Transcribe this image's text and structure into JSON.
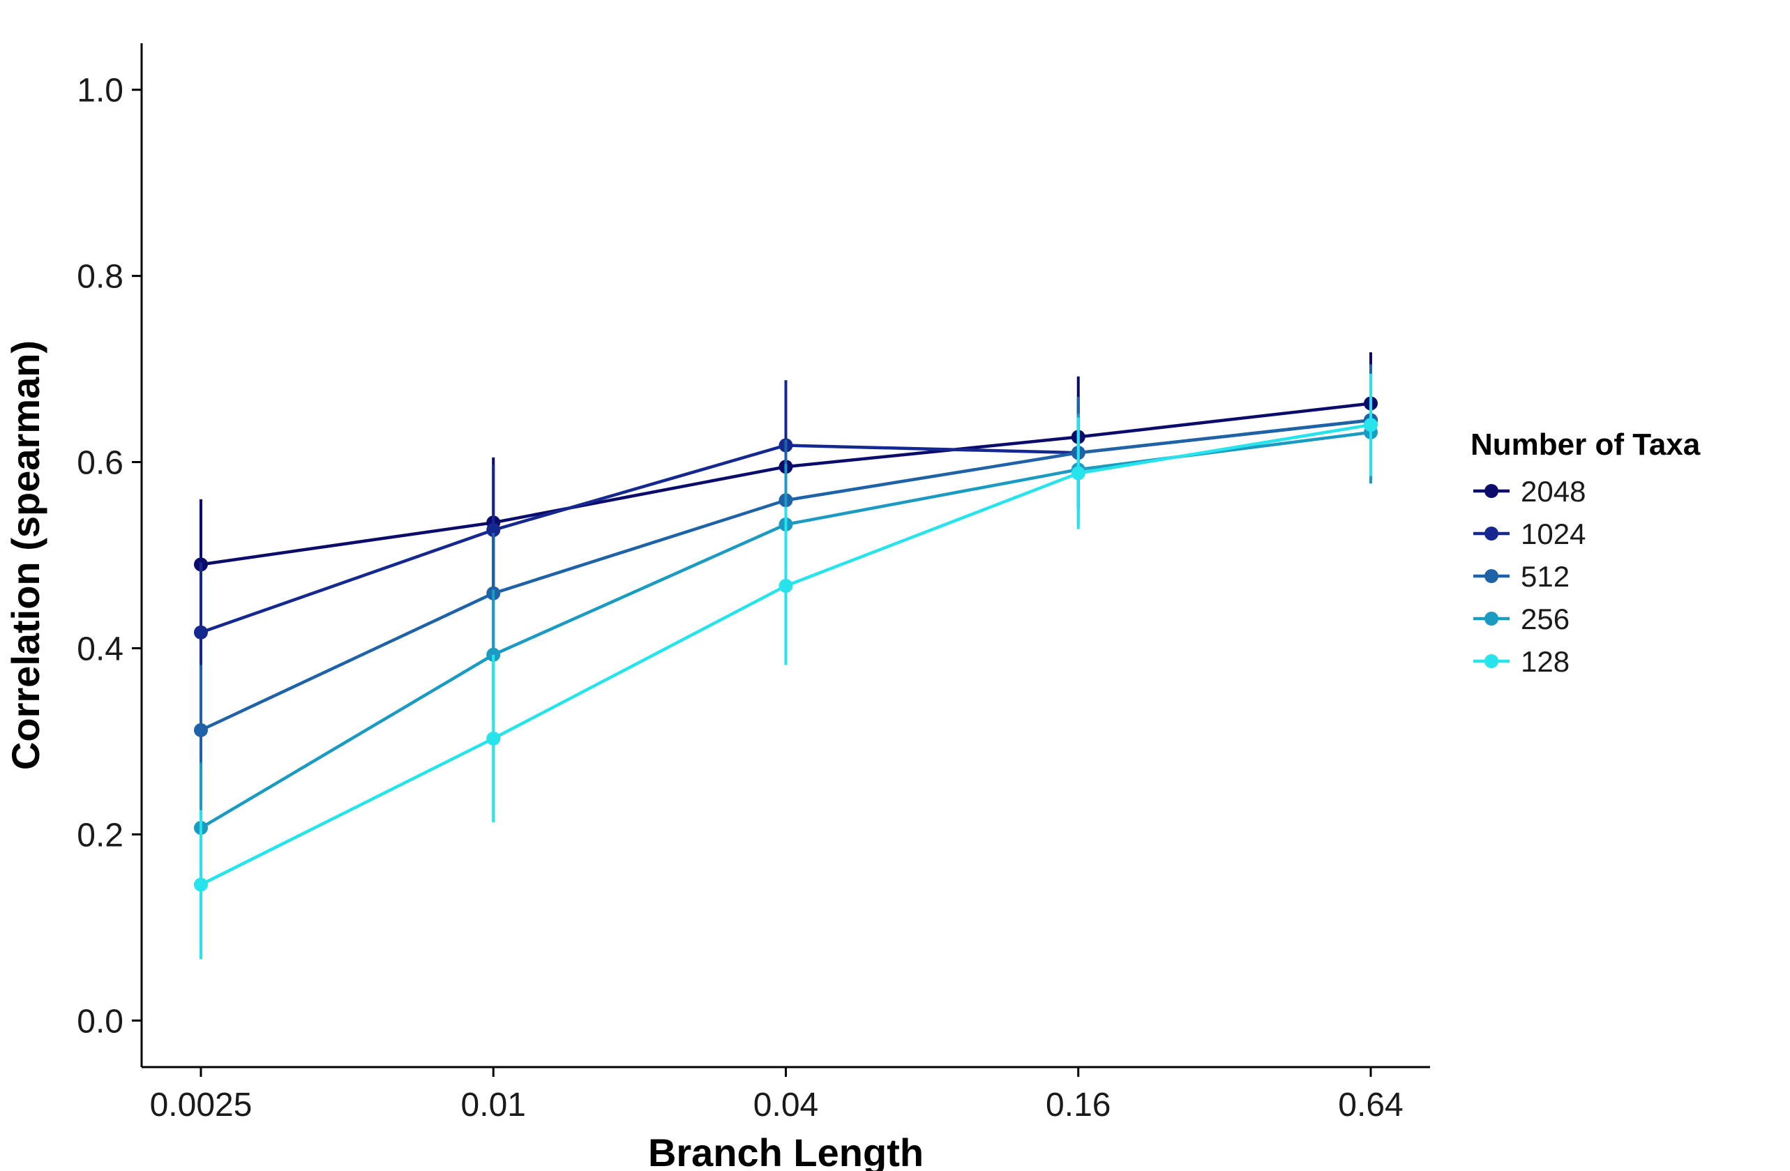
{
  "chart_data": {
    "type": "line",
    "xlabel": "Branch Length",
    "ylabel": "Correlation (spearman)",
    "categories": [
      "0.0025",
      "0.01",
      "0.04",
      "0.16",
      "0.64"
    ],
    "x_scale": "log",
    "ylim": [
      -0.05,
      1.05
    ],
    "yticks": [
      0.0,
      0.2,
      0.4,
      0.6,
      0.8,
      1.0
    ],
    "ytick_labels": [
      "0.0",
      "0.2",
      "0.4",
      "0.6",
      "0.8",
      "1.0"
    ],
    "grid": false,
    "error_bars": true,
    "legend": {
      "title": "Number of Taxa",
      "position": "right"
    },
    "series": [
      {
        "name": "2048",
        "color": "#0b0b6b",
        "values": [
          0.49,
          0.535,
          0.595,
          0.627,
          0.663
        ],
        "errors": [
          0.07,
          0.07,
          0.075,
          0.065,
          0.055
        ]
      },
      {
        "name": "1024",
        "color": "#15288f",
        "values": [
          0.417,
          0.527,
          0.618,
          0.61,
          0.645
        ],
        "errors": [
          0.075,
          0.07,
          0.07,
          0.06,
          0.06
        ]
      },
      {
        "name": "512",
        "color": "#1e62a8",
        "values": [
          0.312,
          0.459,
          0.559,
          0.61,
          0.645
        ],
        "errors": [
          0.07,
          0.065,
          0.065,
          0.06,
          0.06
        ]
      },
      {
        "name": "256",
        "color": "#1b9bc2",
        "values": [
          0.207,
          0.393,
          0.533,
          0.592,
          0.632
        ],
        "errors": [
          0.07,
          0.07,
          0.065,
          0.06,
          0.055
        ]
      },
      {
        "name": "128",
        "color": "#27e3eb",
        "values": [
          0.146,
          0.303,
          0.467,
          0.588,
          0.64
        ],
        "errors": [
          0.08,
          0.09,
          0.085,
          0.06,
          0.055
        ]
      }
    ]
  }
}
